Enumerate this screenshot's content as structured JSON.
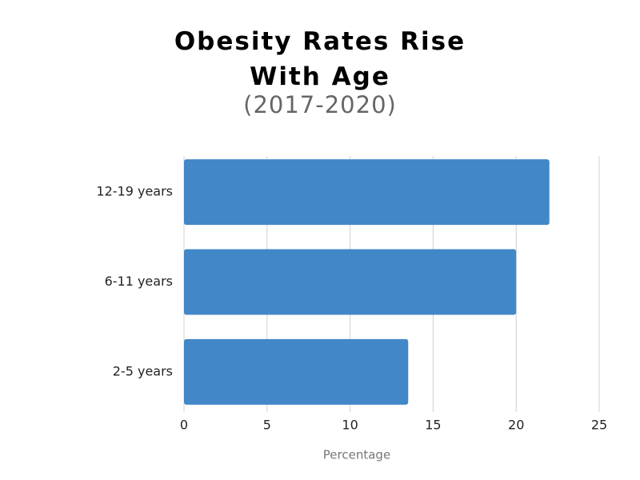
{
  "chart_data": {
    "type": "bar",
    "orientation": "horizontal",
    "title": "Obesity Rates Rise With Age",
    "subtitle": "(2017-2020)",
    "x_label": "Percentage",
    "categories": [
      "12-19 years",
      "6-11 years",
      "2-5 years"
    ],
    "values": [
      22,
      20,
      13.5
    ],
    "color": "#4287c7",
    "xlim": [
      0,
      25
    ],
    "xticks": [
      0,
      5,
      10,
      15,
      20,
      25
    ],
    "grid": true
  }
}
